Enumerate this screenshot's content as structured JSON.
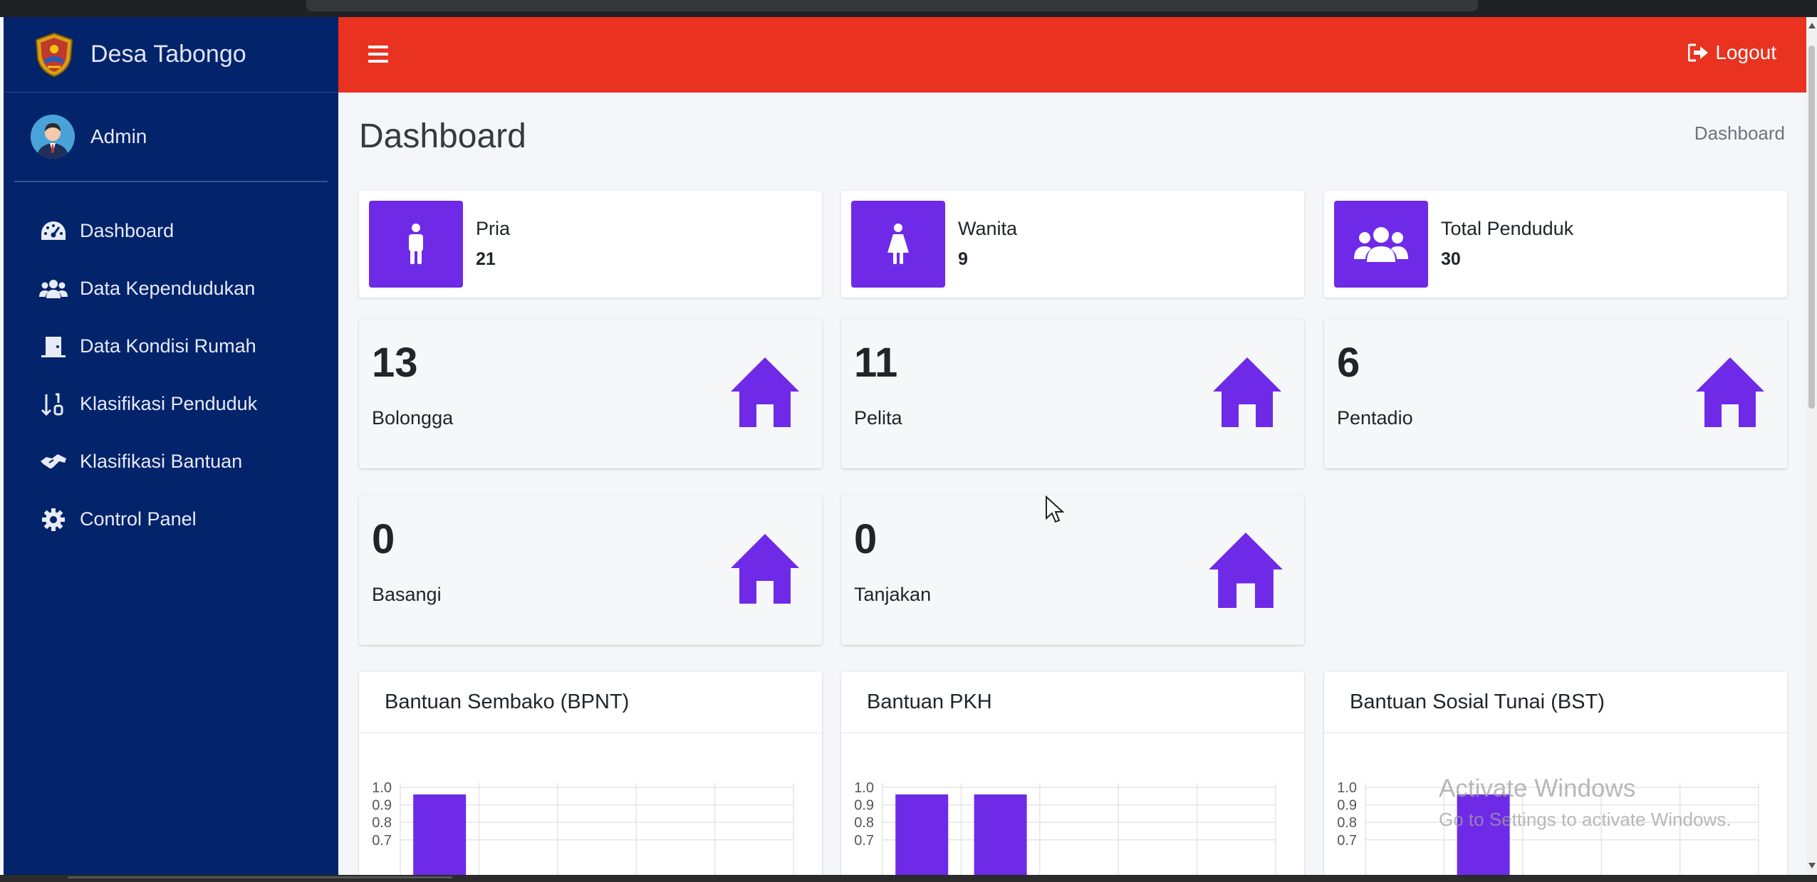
{
  "app": {
    "brand": "Desa Tabongo",
    "user": "Admin"
  },
  "sidebar": {
    "items": [
      {
        "label": "Dashboard",
        "icon": "tachometer-icon"
      },
      {
        "label": "Data Kependudukan",
        "icon": "users-icon"
      },
      {
        "label": "Data Kondisi Rumah",
        "icon": "door-icon"
      },
      {
        "label": "Klasifikasi Penduduk",
        "icon": "sort-numeric-icon"
      },
      {
        "label": "Klasifikasi Bantuan",
        "icon": "handshake-icon"
      },
      {
        "label": "Control Panel",
        "icon": "gear-icon"
      }
    ]
  },
  "topbar": {
    "logout_label": "Logout"
  },
  "page": {
    "title": "Dashboard",
    "breadcrumb": "Dashboard"
  },
  "info_boxes": [
    {
      "label": "Pria",
      "value": "21",
      "icon": "male-icon"
    },
    {
      "label": "Wanita",
      "value": "9",
      "icon": "female-icon"
    },
    {
      "label": "Total Penduduk",
      "value": "30",
      "icon": "users-icon"
    }
  ],
  "small_boxes": [
    {
      "value": "13",
      "label": "Bolongga",
      "icon": "home-icon"
    },
    {
      "value": "11",
      "label": "Pelita",
      "icon": "home-icon"
    },
    {
      "value": "6",
      "label": "Pentadio",
      "icon": "home-icon"
    },
    {
      "value": "0",
      "label": "Basangi",
      "icon": "home-icon"
    },
    {
      "value": "0",
      "label": "Tanjakan",
      "icon": "home-icon"
    }
  ],
  "colors": {
    "sidebar": "#03236b",
    "topbar": "#e9321f",
    "accent": "#6f2ae8",
    "background": "#f4f6f9"
  },
  "chart_data": [
    {
      "type": "bar",
      "title": "Bantuan Sembako (BPNT)",
      "ytick_labels": [
        "1.0",
        "0.9",
        "0.8",
        "0.7"
      ],
      "ylim_visible": [
        0.7,
        1.0
      ],
      "slots": 5,
      "values": [
        1,
        null,
        null,
        null,
        null
      ]
    },
    {
      "type": "bar",
      "title": "Bantuan PKH",
      "ytick_labels": [
        "1.0",
        "0.9",
        "0.8",
        "0.7"
      ],
      "ylim_visible": [
        0.7,
        1.0
      ],
      "slots": 5,
      "values": [
        1,
        1,
        null,
        null,
        null
      ]
    },
    {
      "type": "bar",
      "title": "Bantuan Sosial Tunai (BST)",
      "ytick_labels": [
        "1.0",
        "0.9",
        "0.8",
        "0.7"
      ],
      "ylim_visible": [
        0.7,
        1.0
      ],
      "slots": 5,
      "values": [
        null,
        1,
        null,
        null,
        null
      ]
    }
  ],
  "overlay": {
    "watermark_line1": "Activate Windows",
    "watermark_line2": "Go to Settings to activate Windows."
  }
}
